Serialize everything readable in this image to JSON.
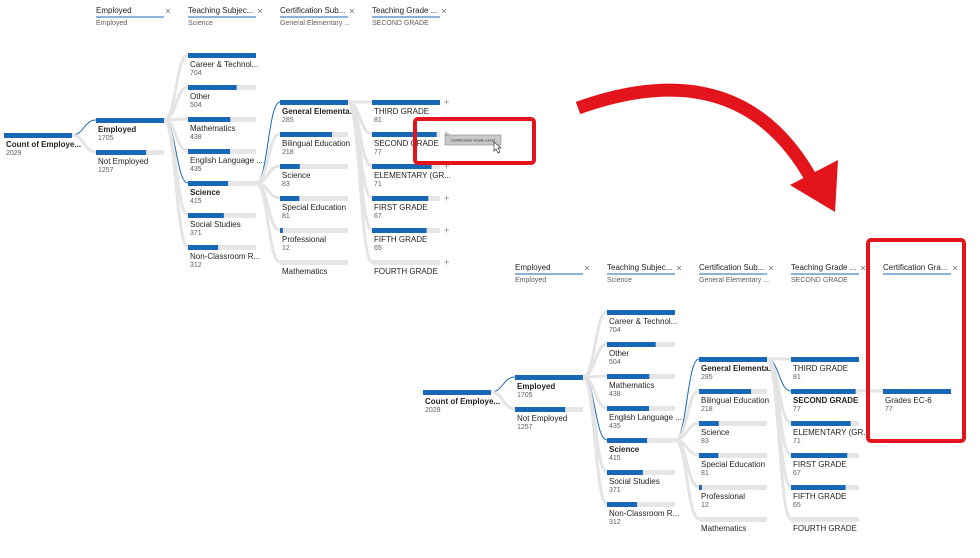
{
  "tooltip": "Certification Grade Level",
  "trees": [
    {
      "headers": [
        {
          "title": "Employed",
          "subtitle": "Employed"
        },
        {
          "title": "Teaching Subjec...",
          "subtitle": "Science"
        },
        {
          "title": "Certification Sub...",
          "subtitle": "General Elementary ..."
        },
        {
          "title": "Teaching Grade ...",
          "subtitle": "SECOND GRADE"
        }
      ],
      "root": {
        "label": "Count of Employe...",
        "value": 2029
      },
      "selected": [
        0,
        4,
        0,
        null
      ],
      "levels": [
        [
          {
            "label": "Employed",
            "value": 1705
          },
          {
            "label": "Not Employed",
            "value": 1257
          }
        ],
        [
          {
            "label": "Career & Technol...",
            "value": 704
          },
          {
            "label": "Other",
            "value": 504
          },
          {
            "label": "Mathematics",
            "value": 438
          },
          {
            "label": "English Language ...",
            "value": 435
          },
          {
            "label": "Science",
            "value": 415
          },
          {
            "label": "Social Studies",
            "value": 371
          },
          {
            "label": "Non-Classroom R...",
            "value": 312
          }
        ],
        [
          {
            "label": "General Elementa...",
            "value": 285
          },
          {
            "label": "Bilingual Education",
            "value": 218
          },
          {
            "label": "Science",
            "value": 83
          },
          {
            "label": "Special Education",
            "value": 81
          },
          {
            "label": "Professional",
            "value": 12
          },
          {
            "label": "Mathematics"
          }
        ],
        [
          {
            "label": "THIRD GRADE",
            "value": 81
          },
          {
            "label": "SECOND GRADE",
            "value": 77
          },
          {
            "label": "ELEMENTARY (GR...",
            "value": 71
          },
          {
            "label": "FIRST GRADE",
            "value": 67
          },
          {
            "label": "FIFTH GRADE",
            "value": 65
          },
          {
            "label": "FOURTH GRADE"
          }
        ]
      ]
    },
    {
      "headers": [
        {
          "title": "Employed",
          "subtitle": "Employed"
        },
        {
          "title": "Teaching Subjec...",
          "subtitle": "Science"
        },
        {
          "title": "Certification Sub...",
          "subtitle": "General Elementary ..."
        },
        {
          "title": "Teaching Grade ...",
          "subtitle": "SECOND GRADE"
        },
        {
          "title": "Certification Gra..."
        }
      ],
      "root": {
        "label": "Count of Employe...",
        "value": 2029
      },
      "selected": [
        0,
        4,
        0,
        1,
        null
      ],
      "levels": [
        [
          {
            "label": "Employed",
            "value": 1705
          },
          {
            "label": "Not Employed",
            "value": 1257
          }
        ],
        [
          {
            "label": "Career & Technol...",
            "value": 704
          },
          {
            "label": "Other",
            "value": 504
          },
          {
            "label": "Mathematics",
            "value": 438
          },
          {
            "label": "English Language ...",
            "value": 435
          },
          {
            "label": "Science",
            "value": 415
          },
          {
            "label": "Social Studies",
            "value": 371
          },
          {
            "label": "Non-Classroom R...",
            "value": 312
          }
        ],
        [
          {
            "label": "General Elementa...",
            "value": 285
          },
          {
            "label": "Bilingual Education",
            "value": 218
          },
          {
            "label": "Science",
            "value": 83
          },
          {
            "label": "Special Education",
            "value": 81
          },
          {
            "label": "Professional",
            "value": 12
          },
          {
            "label": "Mathematics"
          }
        ],
        [
          {
            "label": "THIRD GRADE",
            "value": 81
          },
          {
            "label": "SECOND GRADE",
            "value": 77
          },
          {
            "label": "ELEMENTARY (GR...",
            "value": 71
          },
          {
            "label": "FIRST GRADE",
            "value": 67
          },
          {
            "label": "FIFTH GRADE",
            "value": 65
          },
          {
            "label": "FOURTH GRADE"
          }
        ],
        [
          {
            "label": "Grades EC-6",
            "value": 77
          }
        ]
      ]
    }
  ]
}
